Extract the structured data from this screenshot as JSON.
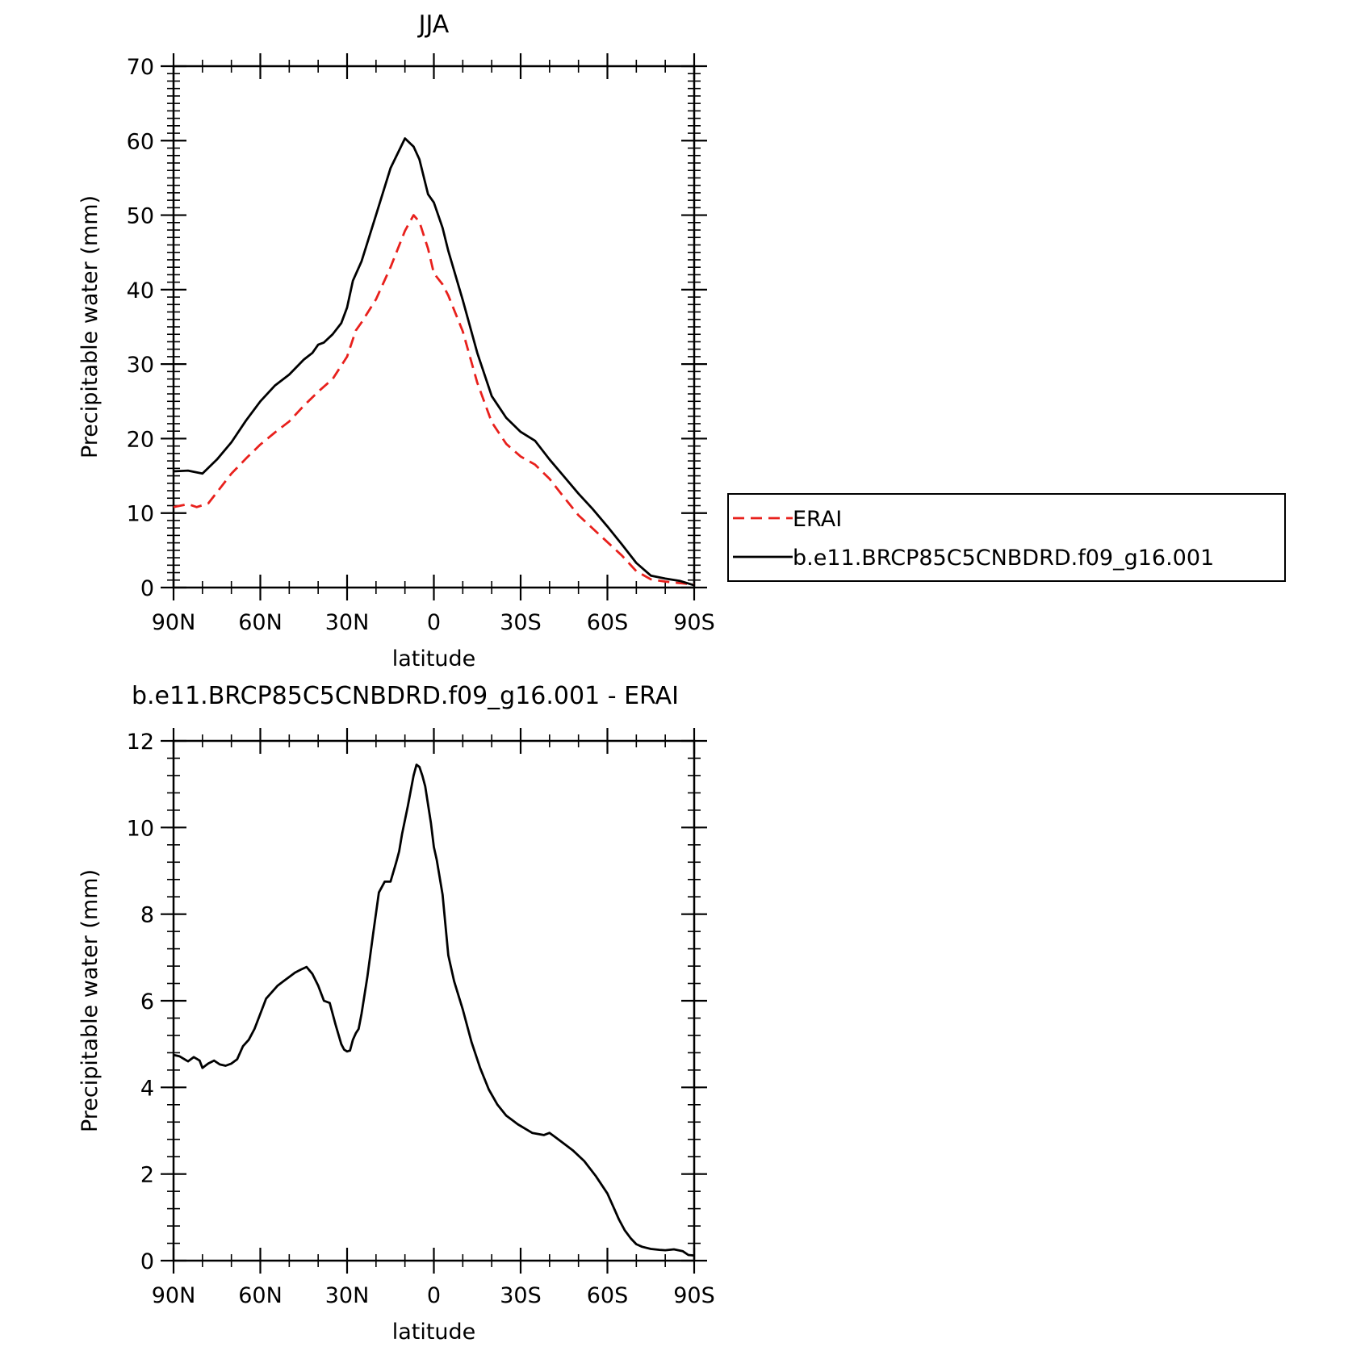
{
  "chart_data": [
    {
      "type": "line",
      "title": "JJA",
      "xlabel": "latitude",
      "ylabel": "Precipitable water (mm)",
      "ylim": [
        0,
        70
      ],
      "yticks": [
        0,
        10,
        20,
        30,
        40,
        50,
        60,
        70
      ],
      "xlim": [
        90,
        -90
      ],
      "xticks": [
        90,
        60,
        30,
        0,
        -30,
        -60,
        -90
      ],
      "xtick_labels": [
        "90N",
        "60N",
        "30N",
        "0",
        "30S",
        "60S",
        "90S"
      ],
      "legend": {
        "placement": "right-middle"
      },
      "series": [
        {
          "name": "ERAI",
          "color": "#e8201c",
          "style": "dashed",
          "x": [
            90,
            85,
            82,
            78,
            75,
            70,
            65,
            60,
            55,
            50,
            45,
            40,
            35,
            30,
            27,
            25,
            20,
            15,
            10,
            7,
            5,
            2,
            0,
            -3,
            -5,
            -10,
            -15,
            -20,
            -25,
            -30,
            -35,
            -40,
            -45,
            -50,
            -55,
            -60,
            -65,
            -70,
            -75,
            -80,
            -85,
            -90
          ],
          "y": [
            10.8,
            11.2,
            10.8,
            11.3,
            12.8,
            15.3,
            17.3,
            19.2,
            20.8,
            22.3,
            24.4,
            26.3,
            28.0,
            31.0,
            34.5,
            35.6,
            38.7,
            43.0,
            47.9,
            50.0,
            49.1,
            45.5,
            42.2,
            40.7,
            39.2,
            34.4,
            27.5,
            22.2,
            19.3,
            17.6,
            16.5,
            14.6,
            12.1,
            9.7,
            7.9,
            6.1,
            4.3,
            2.2,
            1.1,
            0.8,
            0.6,
            0.4
          ]
        },
        {
          "name": "b.e11.BRCP85C5CNBDRD.f09_g16.001",
          "color": "#000000",
          "style": "solid",
          "x": [
            90,
            85,
            80,
            75,
            70,
            65,
            60,
            55,
            50,
            45,
            42,
            40,
            38,
            35,
            32,
            30,
            28,
            25,
            20,
            15,
            10,
            7,
            5,
            2,
            0,
            -3,
            -5,
            -10,
            -15,
            -20,
            -25,
            -30,
            -35,
            -40,
            -45,
            -50,
            -55,
            -60,
            -65,
            -70,
            -75,
            -80,
            -85,
            -90
          ],
          "y": [
            15.6,
            15.7,
            15.3,
            17.2,
            19.5,
            22.4,
            25.0,
            27.1,
            28.6,
            30.6,
            31.5,
            32.6,
            32.9,
            34.0,
            35.5,
            37.6,
            41.2,
            43.8,
            50.0,
            56.3,
            60.3,
            59.2,
            57.5,
            52.8,
            51.7,
            48.3,
            45.2,
            38.6,
            31.5,
            25.7,
            22.8,
            20.9,
            19.7,
            17.2,
            14.9,
            12.6,
            10.5,
            8.2,
            5.8,
            3.3,
            1.6,
            1.2,
            0.9,
            0.3
          ]
        }
      ]
    },
    {
      "type": "line",
      "title": "b.e11.BRCP85C5CNBDRD.f09_g16.001 - ERAI",
      "xlabel": "latitude",
      "ylabel": "Precipitable water (mm)",
      "ylim": [
        0,
        12
      ],
      "yticks": [
        0,
        2,
        4,
        6,
        8,
        10,
        12
      ],
      "xlim": [
        90,
        -90
      ],
      "xticks": [
        90,
        60,
        30,
        0,
        -30,
        -60,
        -90
      ],
      "xtick_labels": [
        "90N",
        "60N",
        "30N",
        "0",
        "30S",
        "60S",
        "90S"
      ],
      "series": [
        {
          "color": "#000000",
          "style": "solid",
          "x": [
            90,
            88,
            85,
            83,
            81,
            80,
            78,
            76,
            74,
            72,
            70,
            68,
            66,
            64,
            62,
            60,
            58,
            56,
            54,
            52,
            50,
            48,
            46,
            44,
            42,
            40,
            38,
            36,
            34,
            32,
            31,
            30,
            29,
            28,
            27,
            26,
            25,
            23,
            21,
            19,
            17,
            15,
            13,
            12,
            11,
            9,
            7,
            6,
            5,
            4,
            3,
            1,
            0,
            -1,
            -3,
            -5,
            -7,
            -10,
            -13,
            -16,
            -19,
            -22,
            -25,
            -29,
            -34,
            -38,
            -40,
            -42,
            -45,
            -48,
            -52,
            -56,
            -60,
            -62,
            -64,
            -66,
            -68,
            -70,
            -72,
            -75,
            -78,
            -80,
            -83,
            -86,
            -88,
            -90
          ],
          "y": [
            4.75,
            4.72,
            4.6,
            4.7,
            4.62,
            4.45,
            4.55,
            4.62,
            4.53,
            4.5,
            4.55,
            4.65,
            4.95,
            5.1,
            5.35,
            5.7,
            6.05,
            6.2,
            6.35,
            6.45,
            6.55,
            6.65,
            6.72,
            6.78,
            6.62,
            6.35,
            6.0,
            5.95,
            5.45,
            5.0,
            4.87,
            4.83,
            4.85,
            5.1,
            5.25,
            5.35,
            5.7,
            6.55,
            7.55,
            8.5,
            8.75,
            8.75,
            9.2,
            9.45,
            9.85,
            10.5,
            11.2,
            11.45,
            11.4,
            11.2,
            10.95,
            10.1,
            9.55,
            9.25,
            8.45,
            7.05,
            6.45,
            5.8,
            5.05,
            4.45,
            3.95,
            3.6,
            3.35,
            3.15,
            2.95,
            2.9,
            2.95,
            2.85,
            2.7,
            2.55,
            2.3,
            1.95,
            1.55,
            1.25,
            0.95,
            0.7,
            0.52,
            0.38,
            0.32,
            0.27,
            0.25,
            0.24,
            0.26,
            0.22,
            0.13,
            0.12
          ]
        }
      ]
    }
  ]
}
